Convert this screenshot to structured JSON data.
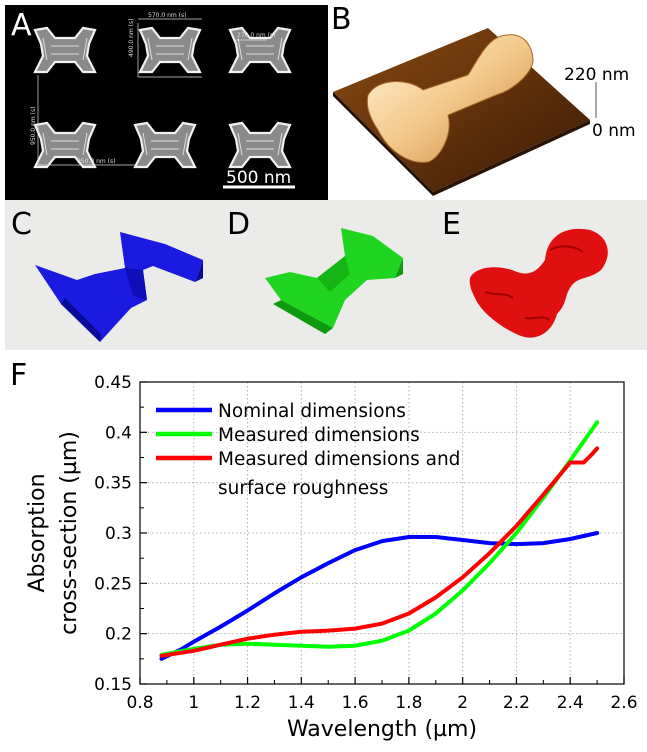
{
  "panels": {
    "a": {
      "letter": "A",
      "scale_label": "500 nm",
      "dim_labels": [
        "570.0 nm (s)",
        "270.0 nm (s)",
        "490.0 nm (s)",
        "950.0 nm (s)",
        "950.0 nm (s)"
      ]
    },
    "b": {
      "letter": "B",
      "height_top": "220 nm",
      "height_bottom": "0 nm"
    },
    "c": {
      "letter": "C"
    },
    "d": {
      "letter": "D"
    },
    "e": {
      "letter": "E"
    },
    "f": {
      "letter": "F"
    }
  },
  "colors": {
    "nominal": "#0000ff",
    "measured": "#00ff00",
    "rough": "#ff0000"
  },
  "chart_data": {
    "type": "line",
    "xlabel": "Wavelength (µm)",
    "ylabel_line1": "Absorption",
    "ylabel_line2": "cross-section (µm)",
    "xlim": [
      0.8,
      2.6
    ],
    "ylim": [
      0.15,
      0.45
    ],
    "xticks": [
      0.8,
      1,
      1.2,
      1.4,
      1.6,
      1.8,
      2,
      2.2,
      2.4,
      2.6
    ],
    "xtick_labels": [
      "0.8",
      "1",
      "1.2",
      "1.4",
      "1.6",
      "1.8",
      "2",
      "2.2",
      "2.4",
      "2.6"
    ],
    "yticks": [
      0.15,
      0.2,
      0.25,
      0.3,
      0.35,
      0.4,
      0.45
    ],
    "ytick_labels": [
      "0.15",
      "0.2",
      "0.25",
      "0.3",
      "0.35",
      "0.4",
      "0.45"
    ],
    "grid": true,
    "legend_position": "top-left",
    "series": [
      {
        "name": "Nominal dimensions",
        "color": "#0000ff",
        "x": [
          0.88,
          0.95,
          1.0,
          1.1,
          1.2,
          1.3,
          1.4,
          1.5,
          1.6,
          1.7,
          1.8,
          1.9,
          2.0,
          2.1,
          2.2,
          2.3,
          2.4,
          2.5
        ],
        "y": [
          0.175,
          0.184,
          0.192,
          0.207,
          0.223,
          0.24,
          0.256,
          0.27,
          0.283,
          0.292,
          0.296,
          0.296,
          0.293,
          0.29,
          0.289,
          0.29,
          0.294,
          0.3
        ]
      },
      {
        "name": "Measured dimensions",
        "color": "#00ff00",
        "x": [
          0.88,
          1.0,
          1.1,
          1.2,
          1.3,
          1.4,
          1.5,
          1.6,
          1.7,
          1.8,
          1.9,
          2.0,
          2.1,
          2.2,
          2.3,
          2.4,
          2.5
        ],
        "y": [
          0.179,
          0.185,
          0.189,
          0.19,
          0.189,
          0.188,
          0.187,
          0.188,
          0.193,
          0.203,
          0.22,
          0.243,
          0.27,
          0.3,
          0.335,
          0.372,
          0.41
        ]
      },
      {
        "name": "Measured dimensions and surface roughness",
        "legend_line1": "Measured dimensions and",
        "legend_line2": "surface roughness",
        "color": "#ff0000",
        "x": [
          0.88,
          1.0,
          1.1,
          1.2,
          1.3,
          1.4,
          1.5,
          1.6,
          1.7,
          1.8,
          1.9,
          2.0,
          2.1,
          2.2,
          2.3,
          2.4,
          2.45,
          2.48,
          2.5
        ],
        "y": [
          0.178,
          0.183,
          0.189,
          0.195,
          0.199,
          0.202,
          0.203,
          0.205,
          0.21,
          0.22,
          0.236,
          0.256,
          0.28,
          0.307,
          0.338,
          0.37,
          0.37,
          0.378,
          0.384
        ]
      }
    ]
  }
}
